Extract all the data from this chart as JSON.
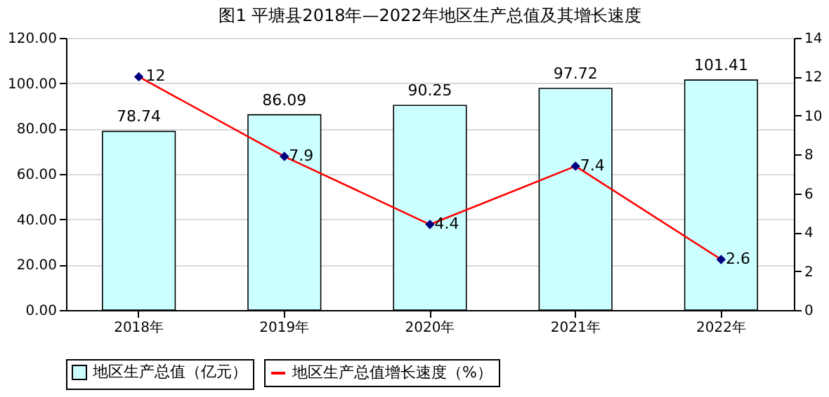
{
  "chart_data": {
    "type": "bar",
    "title": "图1  平塘县2018年—2022年地区生产总值及其增长速度",
    "categories": [
      "2018年",
      "2019年",
      "2020年",
      "2021年",
      "2022年"
    ],
    "series": [
      {
        "name": "地区生产总值（亿元）",
        "color": "#ccffff",
        "values": [
          78.74,
          86.09,
          90.25,
          97.72,
          101.41
        ]
      },
      {
        "name": "地区生产总值增长速度（%）",
        "type": "line",
        "axis": "y2",
        "color": "#ff0000",
        "marker": "diamond",
        "values": [
          12,
          7.9,
          4.4,
          7.4,
          2.6
        ]
      }
    ],
    "ylim": [
      0,
      120
    ],
    "yticks": [
      {
        "value": 0,
        "label": "0.00"
      },
      {
        "value": 20,
        "label": "20.00"
      },
      {
        "value": 40,
        "label": "40.00"
      },
      {
        "value": 60,
        "label": "60.00"
      },
      {
        "value": 80,
        "label": "80.00"
      },
      {
        "value": 100,
        "label": "100.00"
      },
      {
        "value": 120,
        "label": "120.00"
      }
    ],
    "y2lim": [
      0,
      14
    ],
    "y2ticks": [
      0,
      2,
      4,
      6,
      8,
      10,
      12,
      14
    ],
    "grid": "y",
    "legend": "bottom",
    "data_labels": true
  }
}
